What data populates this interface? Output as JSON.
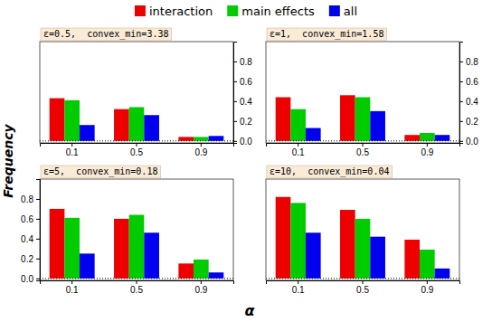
{
  "chart_data": [
    {
      "type": "bar",
      "title": "ε=0.5,  convex_min=3.38",
      "xlabel": "α",
      "ylabel": "Frequency",
      "categories": [
        "0.1",
        "0.5",
        "0.9"
      ],
      "series": [
        {
          "name": "interaction",
          "color": "#EE0000",
          "values": [
            0.43,
            0.32,
            0.04
          ],
          "axis": "y2"
        },
        {
          "name": "main effects",
          "color": "#00CC00",
          "values": [
            0.41,
            0.34,
            0.04
          ],
          "axis": "y2"
        },
        {
          "name": "all",
          "color": "#0000EE",
          "values": [
            0.16,
            0.26,
            0.05
          ],
          "axis": "y2"
        }
      ],
      "y2lim": [
        -0.02,
        1.0
      ],
      "y2ticks": [
        {
          "value": 0.0,
          "label": "0.0"
        },
        0.2,
        0.4,
        0.6,
        0.8
      ],
      "grid": false
    },
    {
      "type": "bar",
      "title": "ε=1,  convex_min=1.58",
      "categories": [
        "0.1",
        "0.5",
        "0.9"
      ],
      "series": [
        {
          "name": "interaction",
          "color": "#EE0000",
          "values": [
            0.44,
            0.46,
            0.06
          ],
          "axis": "y2"
        },
        {
          "name": "main effects",
          "color": "#00CC00",
          "values": [
            0.32,
            0.44,
            0.08
          ],
          "axis": "y2"
        },
        {
          "name": "all",
          "color": "#0000EE",
          "values": [
            0.13,
            0.3,
            0.06
          ],
          "axis": "y2"
        }
      ],
      "y2lim": [
        -0.02,
        1.0
      ],
      "y2ticks": [
        {
          "value": 0.0,
          "label": "0.0"
        },
        0.2,
        0.4,
        0.6,
        0.8
      ],
      "grid": false
    },
    {
      "type": "bar",
      "title": "ε=5,  convex_min=0.18",
      "categories": [
        "0.1",
        "0.5",
        "0.9"
      ],
      "series": [
        {
          "name": "interaction",
          "color": "#EE0000",
          "values": [
            0.7,
            0.6,
            0.15
          ]
        },
        {
          "name": "main effects",
          "color": "#00CC00",
          "values": [
            0.61,
            0.64,
            0.19
          ]
        },
        {
          "name": "all",
          "color": "#0000EE",
          "values": [
            0.25,
            0.46,
            0.06
          ]
        }
      ],
      "ylim": [
        -0.02,
        1.0
      ],
      "yticks": [
        {
          "value": 0.0,
          "label": "0.0"
        },
        0.2,
        0.4,
        0.6,
        0.8
      ],
      "grid": false
    },
    {
      "type": "bar",
      "title": "ε=10,  convex_min=0.04",
      "categories": [
        "0.1",
        "0.5",
        "0.9"
      ],
      "series": [
        {
          "name": "interaction",
          "color": "#EE0000",
          "values": [
            0.82,
            0.69,
            0.39
          ]
        },
        {
          "name": "main effects",
          "color": "#00CC00",
          "values": [
            0.76,
            0.6,
            0.29
          ]
        },
        {
          "name": "all",
          "color": "#0000EE",
          "values": [
            0.46,
            0.42,
            0.1
          ]
        }
      ],
      "ylim": [
        -0.02,
        1.0
      ],
      "tick_labels": "x",
      "grid": false
    }
  ]
}
